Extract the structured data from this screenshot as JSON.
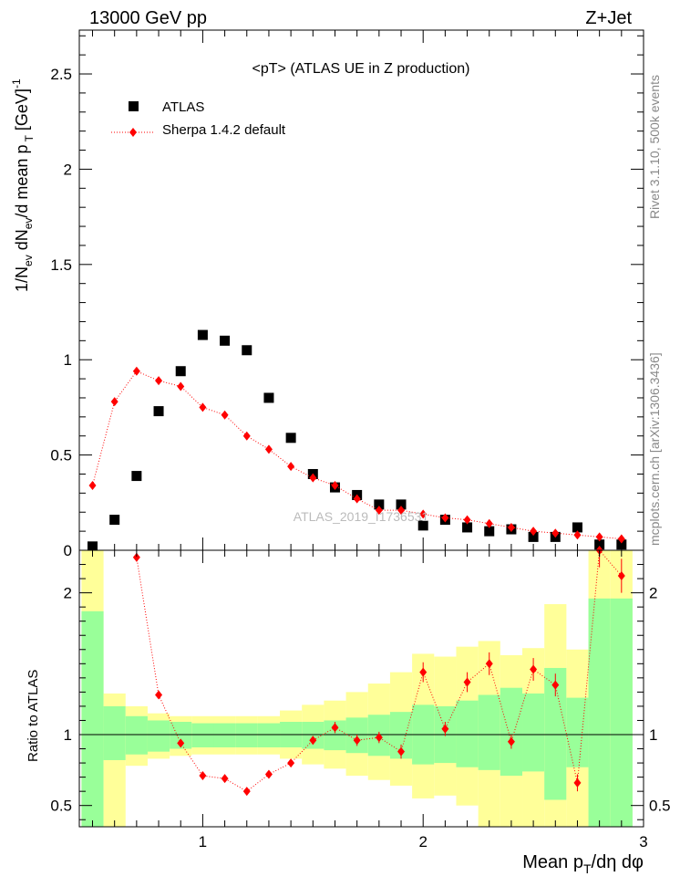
{
  "header": {
    "left": "13000 GeV pp",
    "right": "Z+Jet"
  },
  "side_labels": {
    "rivet": "Rivet 3.1.10,  500k events",
    "source": "mcplots.cern.ch [arXiv:1306.3436]"
  },
  "chart_data": [
    {
      "type": "scatter",
      "title": "<pT>  (ATLAS UE in Z production)",
      "ylabel": "1/N_ev dN_ev/d mean p_T [GeV]^-1",
      "xlim": [
        0.44,
        3.0
      ],
      "ylim": [
        0,
        2.73
      ],
      "yticks": [
        "0",
        "0.5",
        "1",
        "1.5",
        "2",
        "2.5"
      ],
      "watermark": "ATLAS_2019_I1736531",
      "legend_position": "top-left",
      "series": [
        {
          "name": "ATLAS",
          "color": "#000000",
          "marker": "square",
          "x": [
            0.5,
            0.6,
            0.7,
            0.8,
            0.9,
            1.0,
            1.1,
            1.2,
            1.3,
            1.4,
            1.5,
            1.6,
            1.7,
            1.8,
            1.9,
            2.0,
            2.1,
            2.2,
            2.3,
            2.4,
            2.5,
            2.6,
            2.7,
            2.8,
            2.9
          ],
          "y": [
            0.02,
            0.16,
            0.39,
            0.73,
            0.94,
            1.13,
            1.1,
            1.05,
            0.8,
            0.59,
            0.4,
            0.33,
            0.29,
            0.24,
            0.24,
            0.13,
            0.16,
            0.12,
            0.1,
            0.11,
            0.07,
            0.07,
            0.12,
            0.03,
            0.03
          ]
        },
        {
          "name": "Sherpa 1.4.2 default",
          "color": "#ff0000",
          "marker": "diamond",
          "line": "dotted",
          "x": [
            0.5,
            0.6,
            0.7,
            0.8,
            0.9,
            1.0,
            1.1,
            1.2,
            1.3,
            1.4,
            1.5,
            1.6,
            1.7,
            1.8,
            1.9,
            2.0,
            2.1,
            2.2,
            2.3,
            2.4,
            2.5,
            2.6,
            2.7,
            2.8,
            2.9
          ],
          "y": [
            0.34,
            0.78,
            0.94,
            0.89,
            0.86,
            0.75,
            0.71,
            0.6,
            0.53,
            0.44,
            0.38,
            0.34,
            0.27,
            0.21,
            0.21,
            0.19,
            0.17,
            0.16,
            0.14,
            0.12,
            0.1,
            0.09,
            0.08,
            0.07,
            0.06
          ]
        }
      ]
    },
    {
      "type": "scatter",
      "ylabel": "Ratio to ATLAS",
      "xlabel": "Mean p_T/dη dφ",
      "xlim": [
        0.44,
        3.0
      ],
      "ylim": [
        0.35,
        2.3
      ],
      "xticks": [
        "1",
        "2",
        "3"
      ],
      "yticks": [
        "0.5",
        "1",
        "2"
      ],
      "reference_line": 1,
      "bands": {
        "x_edges": [
          0.45,
          0.55,
          0.65,
          0.75,
          0.85,
          0.95,
          1.05,
          1.15,
          1.25,
          1.35,
          1.45,
          1.55,
          1.65,
          1.75,
          1.85,
          1.95,
          2.05,
          2.15,
          2.25,
          2.35,
          2.45,
          2.55,
          2.65,
          2.75,
          2.85,
          2.95
        ],
        "stat_color": "#99ff99",
        "total_color": "#ffff99",
        "stat_lo": [
          0.35,
          0.82,
          0.86,
          0.88,
          0.9,
          0.91,
          0.91,
          0.91,
          0.91,
          0.91,
          0.9,
          0.89,
          0.87,
          0.85,
          0.83,
          0.79,
          0.8,
          0.77,
          0.75,
          0.71,
          0.74,
          0.54,
          0.77,
          0.35,
          0.35
        ],
        "stat_hi": [
          1.87,
          1.2,
          1.13,
          1.1,
          1.09,
          1.08,
          1.08,
          1.08,
          1.08,
          1.09,
          1.09,
          1.1,
          1.12,
          1.14,
          1.16,
          1.21,
          1.2,
          1.24,
          1.28,
          1.33,
          1.29,
          1.47,
          1.26,
          1.96,
          1.96
        ],
        "total_lo": [
          0.35,
          0.35,
          0.78,
          0.83,
          0.85,
          0.86,
          0.86,
          0.86,
          0.86,
          0.83,
          0.79,
          0.76,
          0.71,
          0.68,
          0.64,
          0.55,
          0.57,
          0.5,
          0.35,
          0.35,
          0.35,
          0.35,
          0.35,
          0.35,
          0.35
        ],
        "total_hi": [
          2.3,
          1.29,
          1.2,
          1.15,
          1.13,
          1.13,
          1.13,
          1.13,
          1.13,
          1.17,
          1.21,
          1.24,
          1.3,
          1.36,
          1.44,
          1.57,
          1.55,
          1.62,
          1.66,
          1.56,
          1.61,
          1.92,
          1.6,
          2.3,
          2.3
        ]
      },
      "series": [
        {
          "name": "Sherpa 1.4.2 default",
          "color": "#ff0000",
          "marker": "diamond",
          "line": "dotted",
          "x": [
            0.7,
            0.8,
            0.9,
            1.0,
            1.1,
            1.2,
            1.3,
            1.4,
            1.5,
            1.6,
            1.7,
            1.8,
            1.9,
            2.0,
            2.1,
            2.2,
            2.3,
            2.4,
            2.5,
            2.6,
            2.7,
            2.8,
            2.9
          ],
          "y": [
            2.25,
            1.28,
            0.94,
            0.71,
            0.69,
            0.6,
            0.72,
            0.8,
            0.96,
            1.05,
            0.96,
            0.98,
            0.88,
            1.44,
            1.04,
            1.37,
            1.5,
            0.95,
            1.46,
            1.35,
            0.66,
            2.3,
            2.12
          ],
          "yerr": [
            0.03,
            0.02,
            0.02,
            0.02,
            0.02,
            0.02,
            0.02,
            0.02,
            0.03,
            0.04,
            0.04,
            0.04,
            0.05,
            0.07,
            0.05,
            0.07,
            0.08,
            0.05,
            0.08,
            0.08,
            0.06,
            0.12,
            0.12
          ]
        }
      ]
    }
  ]
}
